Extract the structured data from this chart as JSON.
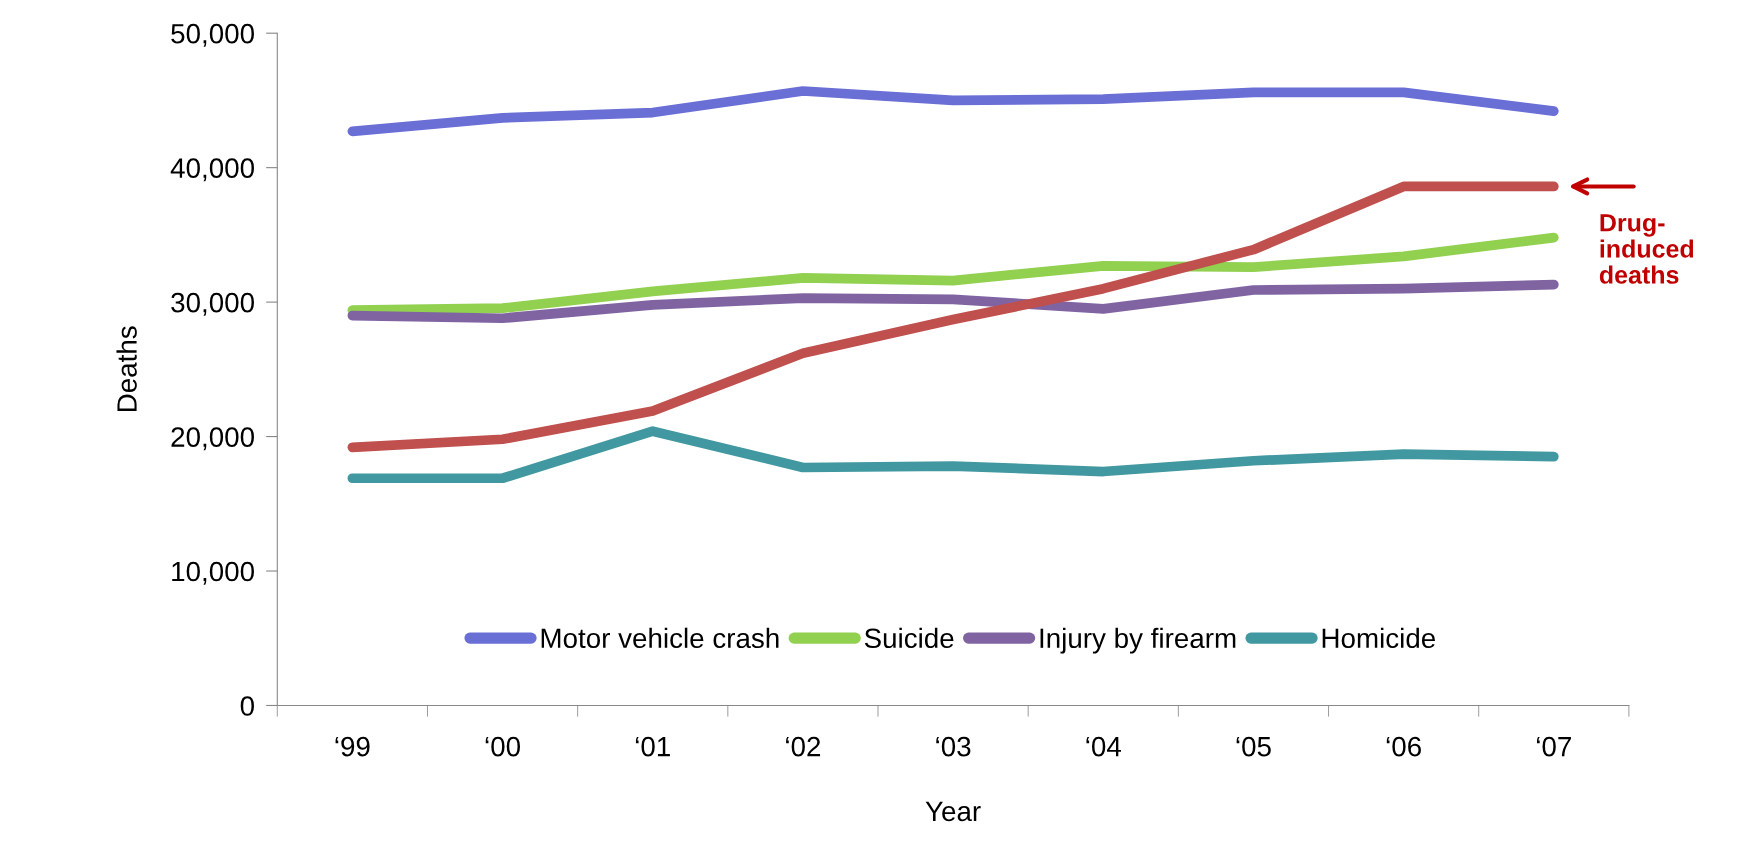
{
  "chart_data": {
    "type": "line",
    "xlabel": "Year",
    "ylabel": "Deaths",
    "categories": [
      "‘99",
      "‘00",
      "‘01",
      "‘02",
      "‘03",
      "‘04",
      "‘05",
      "‘06",
      "‘07"
    ],
    "ylim": [
      0,
      50000
    ],
    "yticks": [
      {
        "value": 0,
        "label": "0"
      },
      {
        "value": 10000,
        "label": "10,000"
      },
      {
        "value": 20000,
        "label": "20,000"
      },
      {
        "value": 30000,
        "label": "30,000"
      },
      {
        "value": 40000,
        "label": "40,000"
      },
      {
        "value": 50000,
        "label": "50,000"
      }
    ],
    "grid": false,
    "legend": "bottom",
    "marker": "none",
    "line_style": "solid",
    "series": [
      {
        "name": "Motor vehicle crash",
        "color": "#6a6fd6",
        "values": [
          42700,
          43700,
          44100,
          45700,
          45000,
          45100,
          45600,
          45600,
          44200
        ]
      },
      {
        "name": "Suicide",
        "color": "#92d050",
        "values": [
          29400,
          29550,
          30800,
          31800,
          31600,
          32700,
          32600,
          33400,
          34800
        ]
      },
      {
        "name": "Injury by firearm",
        "color": "#8064a2",
        "values": [
          29000,
          28800,
          29800,
          30300,
          30200,
          29500,
          30900,
          31000,
          31300
        ]
      },
      {
        "name": "Homicide",
        "color": "#4198a0",
        "values": [
          16900,
          16900,
          20400,
          17700,
          17800,
          17400,
          18200,
          18700,
          18500
        ]
      },
      {
        "color": "#c0504d",
        "values": [
          19200,
          19800,
          21900,
          26200,
          28700,
          31000,
          33900,
          38600,
          38600
        ]
      }
    ],
    "annotations": [
      {
        "text": "Drug-induced deaths",
        "x": "‘07",
        "y": 38600
      }
    ]
  }
}
